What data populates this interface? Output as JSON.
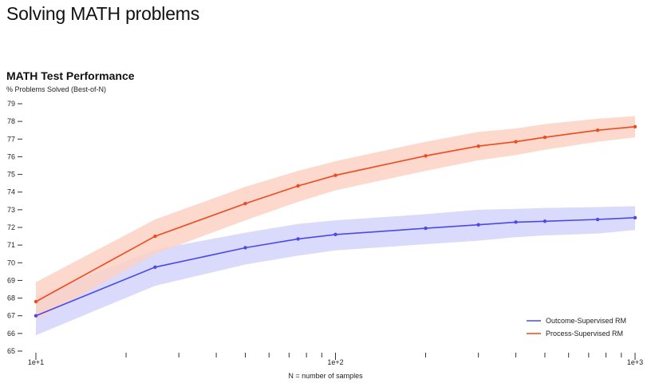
{
  "page": {
    "title": "Solving MATH problems"
  },
  "chart_data": {
    "type": "line",
    "title": "MATH Test Performance",
    "ylabel": "% Problems Solved (Best-of-N)",
    "xlabel": "N = number of samples",
    "x_scale": "log",
    "xlim": [
      10,
      1000
    ],
    "ylim": [
      65,
      79
    ],
    "y_ticks": [
      65,
      66,
      67,
      68,
      69,
      70,
      71,
      72,
      73,
      74,
      75,
      76,
      77,
      78,
      79
    ],
    "x_tick_labels": [
      {
        "x": 10,
        "label": "1e+1"
      },
      {
        "x": 100,
        "label": "1e+2"
      },
      {
        "x": 1000,
        "label": "1e+3"
      }
    ],
    "grid": false,
    "legend_position": "bottom-right",
    "series": [
      {
        "name": "Outcome-Supervised RM",
        "color": "#4a4ae8",
        "band_color": "#d4d4fb",
        "x": [
          10,
          25,
          50,
          75,
          100,
          200,
          300,
          400,
          500,
          750,
          1000
        ],
        "y": [
          67.0,
          69.75,
          70.85,
          71.35,
          71.6,
          71.95,
          72.15,
          72.3,
          72.35,
          72.45,
          72.55
        ],
        "lower": [
          65.9,
          68.7,
          69.9,
          70.4,
          70.7,
          71.05,
          71.25,
          71.45,
          71.55,
          71.65,
          71.85
        ],
        "upper": [
          68.1,
          70.75,
          71.7,
          72.2,
          72.4,
          72.75,
          73.0,
          73.05,
          73.1,
          73.15,
          73.2
        ]
      },
      {
        "name": "Process-Supervised RM",
        "color": "#ee4a1f",
        "band_color": "#fcd1c4",
        "x": [
          10,
          25,
          50,
          75,
          100,
          200,
          300,
          400,
          500,
          750,
          1000
        ],
        "y": [
          67.8,
          71.5,
          73.35,
          74.35,
          74.95,
          76.05,
          76.6,
          76.85,
          77.1,
          77.5,
          77.7
        ],
        "lower": [
          66.75,
          70.5,
          72.4,
          73.45,
          74.1,
          75.2,
          75.8,
          76.1,
          76.4,
          76.85,
          77.1
        ],
        "upper": [
          68.9,
          72.45,
          74.3,
          75.2,
          75.75,
          76.85,
          77.4,
          77.6,
          77.85,
          78.15,
          78.3
        ]
      }
    ]
  }
}
